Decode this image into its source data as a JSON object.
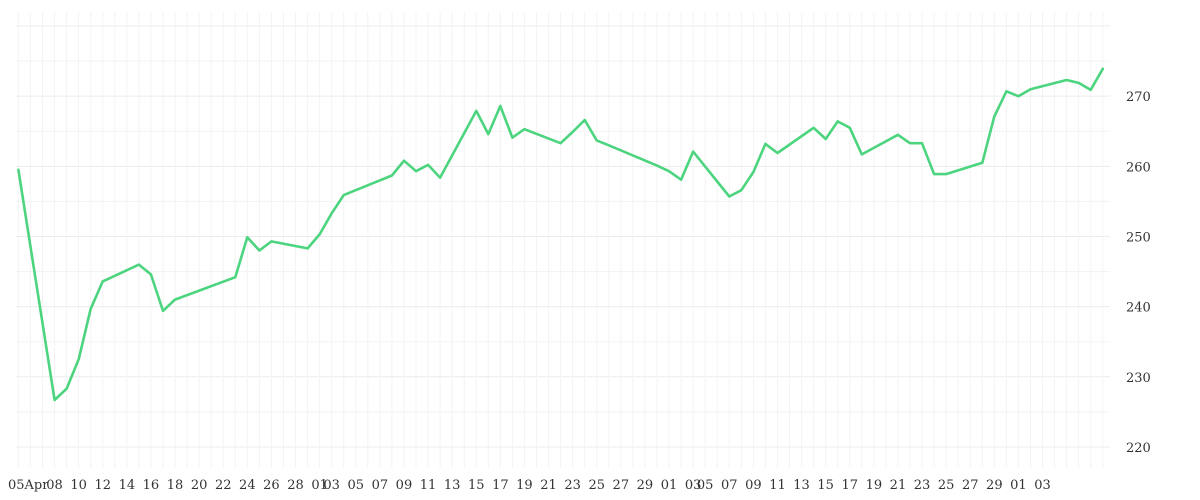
{
  "chart_data": {
    "type": "line",
    "title": "",
    "xlabel": "",
    "ylabel": "",
    "ylim": [
      217,
      282
    ],
    "yticks": [
      220,
      230,
      240,
      250,
      260,
      270
    ],
    "grid": true,
    "y_axis_position": "right",
    "line_color": "#4cd47e",
    "xtick_labels": [
      "05Apr",
      "08",
      "10",
      "12",
      "14",
      "16",
      "18",
      "20",
      "22",
      "24",
      "26",
      "28",
      "01",
      "03",
      "05",
      "07",
      "09",
      "11",
      "13",
      "15",
      "17",
      "19",
      "21",
      "23",
      "25",
      "27",
      "29",
      "01",
      "03",
      "05",
      "07",
      "09",
      "11",
      "13",
      "15",
      "17",
      "19",
      "21",
      "23",
      "25",
      "27",
      "29",
      "01",
      "03"
    ],
    "series": [
      {
        "x": [
          "2024-04-05",
          "2024-04-08",
          "2024-04-09",
          "2024-04-10",
          "2024-04-11",
          "2024-04-12",
          "2024-04-15",
          "2024-04-16",
          "2024-04-17",
          "2024-04-18",
          "2024-04-23",
          "2024-04-24",
          "2024-04-25",
          "2024-04-26",
          "2024-04-29",
          "2024-04-30",
          "2024-05-01",
          "2024-05-02",
          "2024-05-06",
          "2024-05-07",
          "2024-05-08",
          "2024-05-09",
          "2024-05-10",
          "2024-05-13",
          "2024-05-14",
          "2024-05-15",
          "2024-05-16",
          "2024-05-17",
          "2024-05-20",
          "2024-05-21",
          "2024-05-22",
          "2024-05-23",
          "2024-05-24",
          "2024-05-28",
          "2024-05-29",
          "2024-05-30",
          "2024-05-31",
          "2024-06-03",
          "2024-06-04",
          "2024-06-05",
          "2024-06-06",
          "2024-06-07",
          "2024-06-10",
          "2024-06-11",
          "2024-06-12",
          "2024-06-13",
          "2024-06-14",
          "2024-06-17",
          "2024-06-18",
          "2024-06-19",
          "2024-06-20",
          "2024-06-21",
          "2024-06-24",
          "2024-06-25",
          "2024-06-26",
          "2024-06-27",
          "2024-06-28",
          "2024-07-01",
          "2024-07-02",
          "2024-07-03",
          "2024-07-04"
        ],
        "y": [
          259.5,
          226.7,
          228.3,
          232.5,
          239.7,
          243.6,
          246.0,
          244.6,
          239.4,
          241.0,
          244.2,
          249.9,
          248.0,
          249.3,
          248.3,
          250.3,
          253.3,
          255.9,
          258.7,
          260.8,
          259.3,
          260.2,
          258.4,
          267.9,
          264.6,
          268.6,
          264.1,
          265.3,
          263.3,
          264.9,
          266.6,
          263.7,
          263.0,
          260.1,
          259.3,
          258.1,
          262.1,
          255.7,
          256.6,
          259.2,
          263.2,
          261.9,
          265.5,
          263.9,
          266.4,
          265.5,
          261.7,
          264.5,
          263.3,
          263.3,
          258.9,
          258.9,
          260.5,
          267.1,
          270.7,
          270.0,
          271.0,
          272.3,
          271.9,
          270.9,
          273.9
        ]
      }
    ]
  }
}
